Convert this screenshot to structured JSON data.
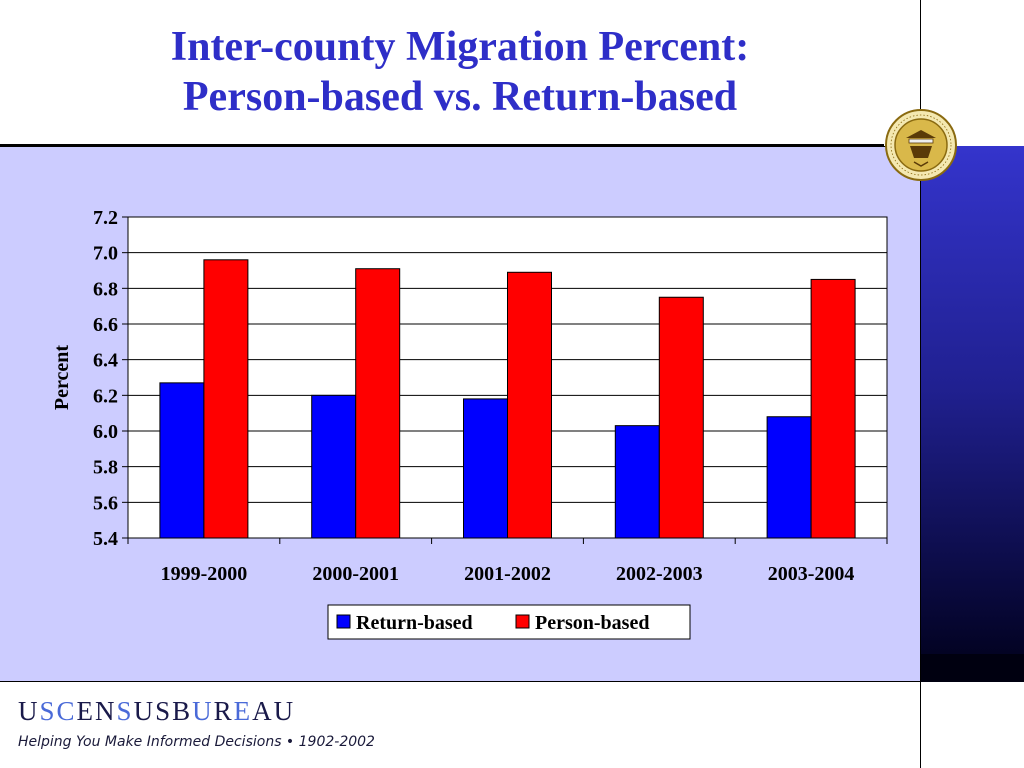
{
  "slide": {
    "title_line1": "Inter-county Migration Percent:",
    "title_line2": "Person-based vs. Return-based",
    "footer_logo_letters": [
      "U",
      "S",
      "C",
      "E",
      "N",
      "S",
      "U",
      "S",
      "B",
      "U",
      "R",
      "E",
      "A",
      "U"
    ],
    "footer_tagline": "Helping You Make Informed Decisions • 1902-2002",
    "seal_icon": "department-of-commerce-seal-icon"
  },
  "colors": {
    "title": "#2e2ec8",
    "panel": "#ccccff",
    "return_based": "#0000ff",
    "person_based": "#ff0000",
    "logo_dark": "#1a1a4a",
    "logo_accent": "#4a6ad8"
  },
  "chart_data": {
    "type": "bar",
    "title": "",
    "xlabel": "",
    "ylabel": "Percent",
    "ylim": [
      5.4,
      7.2
    ],
    "yticks": [
      "5.4",
      "5.6",
      "5.8",
      "6.0",
      "6.2",
      "6.4",
      "6.6",
      "6.8",
      "7.0",
      "7.2"
    ],
    "grid": true,
    "legend_position": "bottom-center",
    "categories": [
      "1999-2000",
      "2000-2001",
      "2001-2002",
      "2002-2003",
      "2003-2004"
    ],
    "series": [
      {
        "name": "Return-based",
        "values": [
          6.27,
          6.2,
          6.18,
          6.03,
          6.08
        ]
      },
      {
        "name": "Person-based",
        "values": [
          6.96,
          6.91,
          6.89,
          6.75,
          6.85
        ]
      }
    ]
  }
}
